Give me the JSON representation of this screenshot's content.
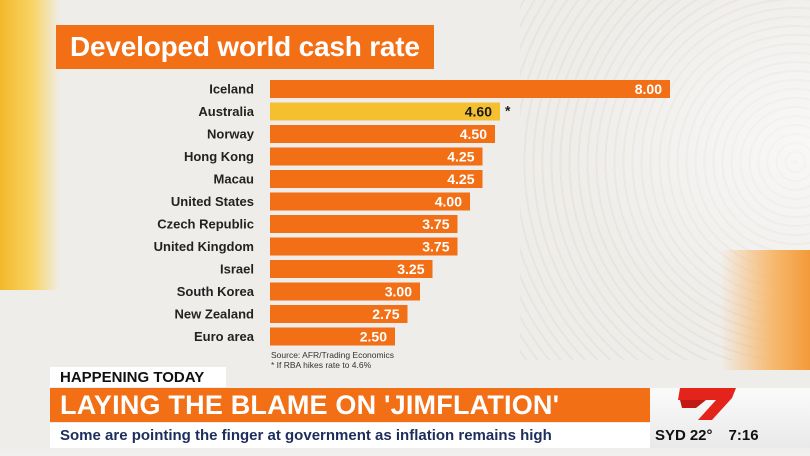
{
  "chart_data": {
    "type": "bar",
    "orientation": "horizontal",
    "title": "Developed world cash rate",
    "categories": [
      "Iceland",
      "Australia",
      "Norway",
      "Hong Kong",
      "Macau",
      "United States",
      "Czech Republic",
      "United Kingdom",
      "Israel",
      "South Korea",
      "New Zealand",
      "Euro area"
    ],
    "values": [
      8.0,
      4.6,
      4.5,
      4.25,
      4.25,
      4.0,
      3.75,
      3.75,
      3.25,
      3.0,
      2.75,
      2.5
    ],
    "value_labels": [
      "8.00",
      "4.60",
      "4.50",
      "4.25",
      "4.25",
      "4.00",
      "3.75",
      "3.75",
      "3.25",
      "3.00",
      "2.75",
      "2.50"
    ],
    "highlight_index": 1,
    "annotations": [
      {
        "category": "Australia",
        "text": "*"
      }
    ],
    "xlim": [
      0,
      8
    ],
    "grid": false,
    "colors": {
      "bar": "#f26f16",
      "highlight": "#f5c030",
      "label_on_bar": "#ffffff",
      "label_on_highlight": "#1a1a1a"
    },
    "source": "Source: AFR/Trading Economics",
    "footnote": "* If RBA hikes rate to 4.6%"
  },
  "lower_third": {
    "tag": "HAPPENING TODAY",
    "headline": "LAYING THE BLAME ON 'JIMFLATION'",
    "subheadline": "Some are pointing the finger at government as inflation remains high",
    "city": "SYD",
    "temperature": "22°",
    "time": "7:16",
    "logo_icon": "channel-7-logo-icon"
  },
  "colors": {
    "accent": "#f26f16",
    "highlight": "#f5c030",
    "navy": "#1d2d5c",
    "logo_red": "#e4231b"
  }
}
